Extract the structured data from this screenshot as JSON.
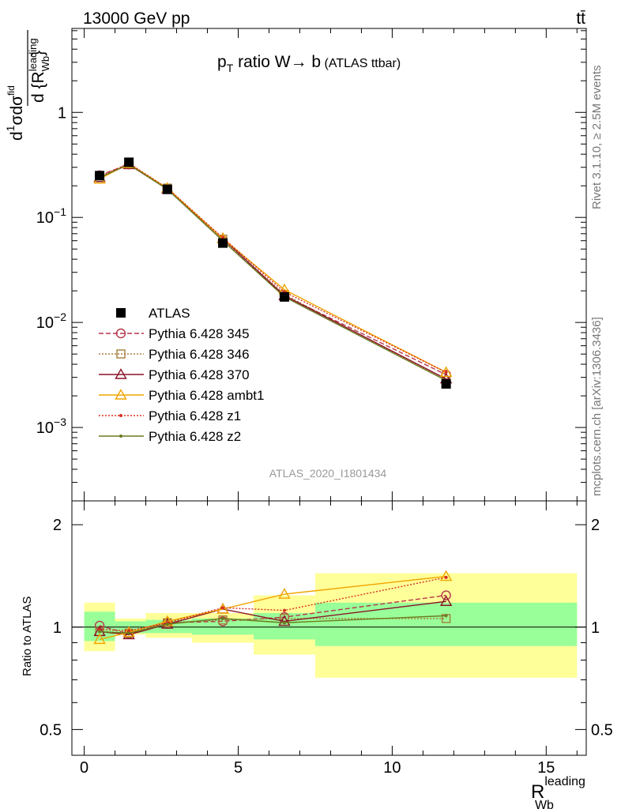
{
  "header": {
    "left": "13000 GeV pp",
    "right": "tt̄"
  },
  "side_labels": {
    "rivet": "Rivet 3.1.10, ≥ 2.5M events",
    "mcplots": "mcplots.cern.ch [arXiv:1306.3436]"
  },
  "chart_data": {
    "type": "line",
    "title": "p_T ratio W → b (ATLAS ttbar)",
    "title_parts": {
      "p": "p",
      "sub": "T",
      "rest": " ratio W",
      "arrow": "→",
      "b": " b",
      "small": " (ATLAS ttbar)"
    },
    "analysis_id": "ATLAS_2020_I1801434",
    "xlabel": {
      "main": "R",
      "sup": "leading",
      "sub": "Wb"
    },
    "ylabel_top": {
      "d1": "d",
      "sigma": "σ",
      "one": "1",
      "dsig": "dσ",
      "dsig_sup": "fid",
      "denom": "d {R",
      "denom_sup": "leading",
      "denom_sub": "Wb",
      "brace": "}"
    },
    "ylabel_bottom": "Ratio to ATLAS",
    "xlim": [
      -0.4,
      16.3
    ],
    "x_ticks": [
      0,
      5,
      10,
      15
    ],
    "x_tick_labels": [
      "0",
      "5",
      "10",
      "15"
    ],
    "top_panel": {
      "yscale": "log",
      "ylim": [
        0.0002,
        6.3
      ],
      "y_tick_labels": [
        {
          "value": 1,
          "base": "1",
          "exp": ""
        },
        {
          "value": 0.1,
          "base": "10",
          "exp": "−1"
        },
        {
          "value": 0.01,
          "base": "10",
          "exp": "−2"
        },
        {
          "value": 0.001,
          "base": "10",
          "exp": "−3"
        }
      ]
    },
    "bottom_panel": {
      "yscale": "log",
      "ylim": [
        0.42,
        2.35
      ],
      "y_tick_labels": [
        {
          "value": 0.5,
          "label": "0.5"
        },
        {
          "value": 1,
          "label": "1"
        },
        {
          "value": 2,
          "label": "2"
        }
      ],
      "bands": [
        {
          "xmin": 0,
          "xmax": 1,
          "inner": [
            0.91,
            1.11
          ],
          "outer": [
            0.85,
            1.18
          ]
        },
        {
          "xmin": 1,
          "xmax": 2,
          "inner": [
            0.96,
            1.04
          ],
          "outer": [
            0.95,
            1.06
          ]
        },
        {
          "xmin": 2,
          "xmax": 3.5,
          "inner": [
            0.96,
            1.05
          ],
          "outer": [
            0.93,
            1.1
          ]
        },
        {
          "xmin": 3.5,
          "xmax": 5.5,
          "inner": [
            0.95,
            1.06
          ],
          "outer": [
            0.9,
            1.1
          ]
        },
        {
          "xmin": 5.5,
          "xmax": 7.5,
          "inner": [
            0.92,
            1.1
          ],
          "outer": [
            0.83,
            1.24
          ]
        },
        {
          "xmin": 7.5,
          "xmax": 16,
          "inner": [
            0.88,
            1.18
          ],
          "outer": [
            0.71,
            1.44
          ]
        }
      ]
    },
    "x": [
      0.5,
      1.45,
      2.7,
      4.5,
      6.5,
      11.75
    ],
    "series": [
      {
        "name": "ATLAS",
        "style": "data",
        "color": "#000000",
        "values": [
          0.25,
          0.335,
          0.185,
          0.057,
          0.0175,
          0.0026
        ],
        "ratio": [
          1,
          1,
          1,
          1,
          1,
          1
        ]
      },
      {
        "name": "Pythia 6.428 345",
        "style": "circle",
        "dash": "6,3",
        "color": "#b5364b",
        "values": [
          0.252,
          0.32,
          0.188,
          0.06,
          0.018,
          0.00318
        ],
        "ratio": [
          1.01,
          0.955,
          1.03,
          1.04,
          1.07,
          1.24
        ]
      },
      {
        "name": "Pythia 6.428 346",
        "style": "square",
        "dash": "2,2",
        "color": "#a67c3c",
        "values": [
          0.24,
          0.32,
          0.19,
          0.062,
          0.0185,
          0.0028
        ],
        "ratio": [
          0.97,
          0.96,
          1.03,
          1.05,
          1.06,
          1.06
        ]
      },
      {
        "name": "Pythia 6.428 370",
        "style": "triangle",
        "dash": "",
        "color": "#8a1428",
        "values": [
          0.24,
          0.318,
          0.186,
          0.063,
          0.018,
          0.0029
        ],
        "ratio": [
          0.97,
          0.95,
          1.02,
          1.13,
          1.04,
          1.19
        ]
      },
      {
        "name": "Pythia 6.428 ambt1",
        "style": "triangle",
        "dash": "",
        "color": "#f0a500",
        "values": [
          0.232,
          0.325,
          0.19,
          0.063,
          0.0205,
          0.00335
        ],
        "ratio": [
          0.92,
          0.965,
          1.04,
          1.13,
          1.25,
          1.41
        ]
      },
      {
        "name": "Pythia 6.428 z1",
        "style": "dot",
        "dash": "2,2",
        "color": "#d7301f",
        "values": [
          0.245,
          0.328,
          0.19,
          0.064,
          0.0195,
          0.00335
        ],
        "ratio": [
          0.985,
          0.975,
          1.03,
          1.14,
          1.12,
          1.4
        ]
      },
      {
        "name": "Pythia 6.428 z2",
        "style": "dot",
        "dash": "",
        "color": "#6b7a1e",
        "values": [
          0.24,
          0.32,
          0.185,
          0.06,
          0.0175,
          0.0028
        ],
        "ratio": [
          0.97,
          0.96,
          1.02,
          1.06,
          1.03,
          1.08
        ]
      }
    ],
    "legend_position": "lower-left"
  },
  "colors": {
    "band_inner": "#99ff99",
    "band_outer": "#ffff99",
    "axis": "#000000",
    "watermark": "#999999"
  }
}
